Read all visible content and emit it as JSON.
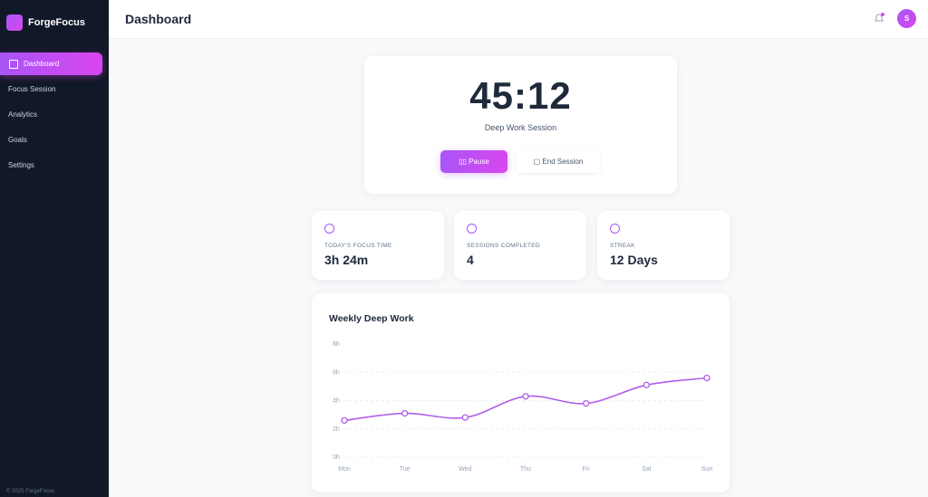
{
  "sidebar": {
    "brand": "ForgeFocus",
    "nav": [
      "Dashboard",
      "Focus Session",
      "Analytics",
      "Goals",
      "Settings"
    ],
    "footer": "© 2025 ForgeFocus"
  },
  "header": {
    "title": "Dashboard",
    "avatar": "S"
  },
  "timer": {
    "time": "45:12",
    "label": "Deep Work Session",
    "buttons": [
      "Pause",
      "End Session"
    ]
  },
  "stats": [
    {
      "label": "TODAY'S FOCUS TIME",
      "value": "3h 24m"
    },
    {
      "label": "SESSIONS COMPLETED",
      "value": "4"
    },
    {
      "label": "STREAK",
      "value": "12 Days"
    }
  ],
  "chart_data": {
    "type": "line",
    "title": "Weekly Deep Work",
    "categories": [
      "Mon",
      "Tue",
      "Wed",
      "Thu",
      "Fri",
      "Sat",
      "Sun"
    ],
    "values": [
      2.6,
      3.1,
      2.8,
      4.3,
      3.8,
      5.1,
      5.6
    ],
    "color": "#b05ee6",
    "ylim": [
      0,
      8
    ],
    "yticks": [
      {
        "value": 0,
        "label": "0h"
      },
      {
        "value": 2,
        "label": "2h"
      },
      {
        "value": 4,
        "label": "4h"
      },
      {
        "value": 6,
        "label": "6h"
      },
      {
        "value": 8,
        "label": "8h"
      }
    ],
    "grid": true
  }
}
